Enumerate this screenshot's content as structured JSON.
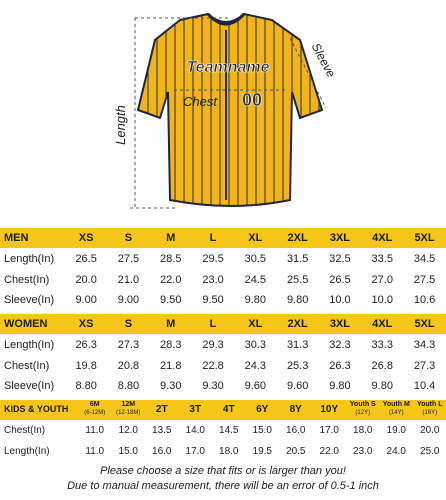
{
  "figure": {
    "length_label": "Length",
    "sleeve_label": "Sleeve",
    "chest_label": "Chest",
    "team_name": "Teamname",
    "number": "00"
  },
  "tables": [
    {
      "title": "MEN",
      "columns": [
        "XS",
        "S",
        "M",
        "L",
        "XL",
        "2XL",
        "3XL",
        "4XL",
        "5XL"
      ],
      "rows": [
        {
          "label": "Length(In)",
          "cells": [
            "26.5",
            "27.5",
            "28.5",
            "29.5",
            "30.5",
            "31.5",
            "32.5",
            "33.5",
            "34.5"
          ]
        },
        {
          "label": "Chest(In)",
          "cells": [
            "20.0",
            "21.0",
            "22.0",
            "23.0",
            "24.5",
            "25.5",
            "26.5",
            "27.0",
            "27.5"
          ]
        },
        {
          "label": "Sleeve(In)",
          "cells": [
            "9.00",
            "9.00",
            "9.50",
            "9.50",
            "9.80",
            "9.80",
            "10.0",
            "10.0",
            "10.6"
          ]
        }
      ]
    },
    {
      "title": "WOMEN",
      "columns": [
        "XS",
        "S",
        "M",
        "L",
        "XL",
        "2XL",
        "3XL",
        "4XL",
        "5XL"
      ],
      "rows": [
        {
          "label": "Length(In)",
          "cells": [
            "26.3",
            "27.3",
            "28.3",
            "29.3",
            "30.3",
            "31.3",
            "32.3",
            "33.3",
            "34.3"
          ]
        },
        {
          "label": "Chest(In)",
          "cells": [
            "19.8",
            "20.8",
            "21.8",
            "22.8",
            "24.3",
            "25.3",
            "26.3",
            "26.8",
            "27.3"
          ]
        },
        {
          "label": "Sleeve(In)",
          "cells": [
            "8.80",
            "8.80",
            "9.30",
            "9.30",
            "9.60",
            "9.60",
            "9.80",
            "9.80",
            "10.4"
          ]
        }
      ]
    },
    {
      "title": "KIDS & YOUTH",
      "columns": [
        {
          "label": "6M",
          "sub": "(6-12M)"
        },
        {
          "label": "12M",
          "sub": "(12-18M)"
        },
        {
          "label": "2T"
        },
        {
          "label": "3T"
        },
        {
          "label": "4T"
        },
        {
          "label": "6Y"
        },
        {
          "label": "8Y"
        },
        {
          "label": "10Y"
        },
        {
          "label": "Youth S",
          "sub": "(12Y)"
        },
        {
          "label": "Youth M",
          "sub": "(14Y)"
        },
        {
          "label": "Youth L",
          "sub": "(16Y)"
        }
      ],
      "rows": [
        {
          "label": "Chest(In)",
          "cells": [
            "11.0",
            "12.0",
            "13.5",
            "14.0",
            "14.5",
            "15.0",
            "16.0",
            "17.0",
            "18.0",
            "19.0",
            "20.0"
          ]
        },
        {
          "label": "Length(In)",
          "cells": [
            "11.0",
            "15.0",
            "16.0",
            "17.0",
            "18.0",
            "19.5",
            "20.5",
            "22.0",
            "23.0",
            "24.0",
            "25.0"
          ]
        }
      ]
    }
  ],
  "notes": [
    "Please choose a size that fits or is larger than you!",
    "Due to manual measurement, there will be an error of 0.5-1 inch"
  ]
}
